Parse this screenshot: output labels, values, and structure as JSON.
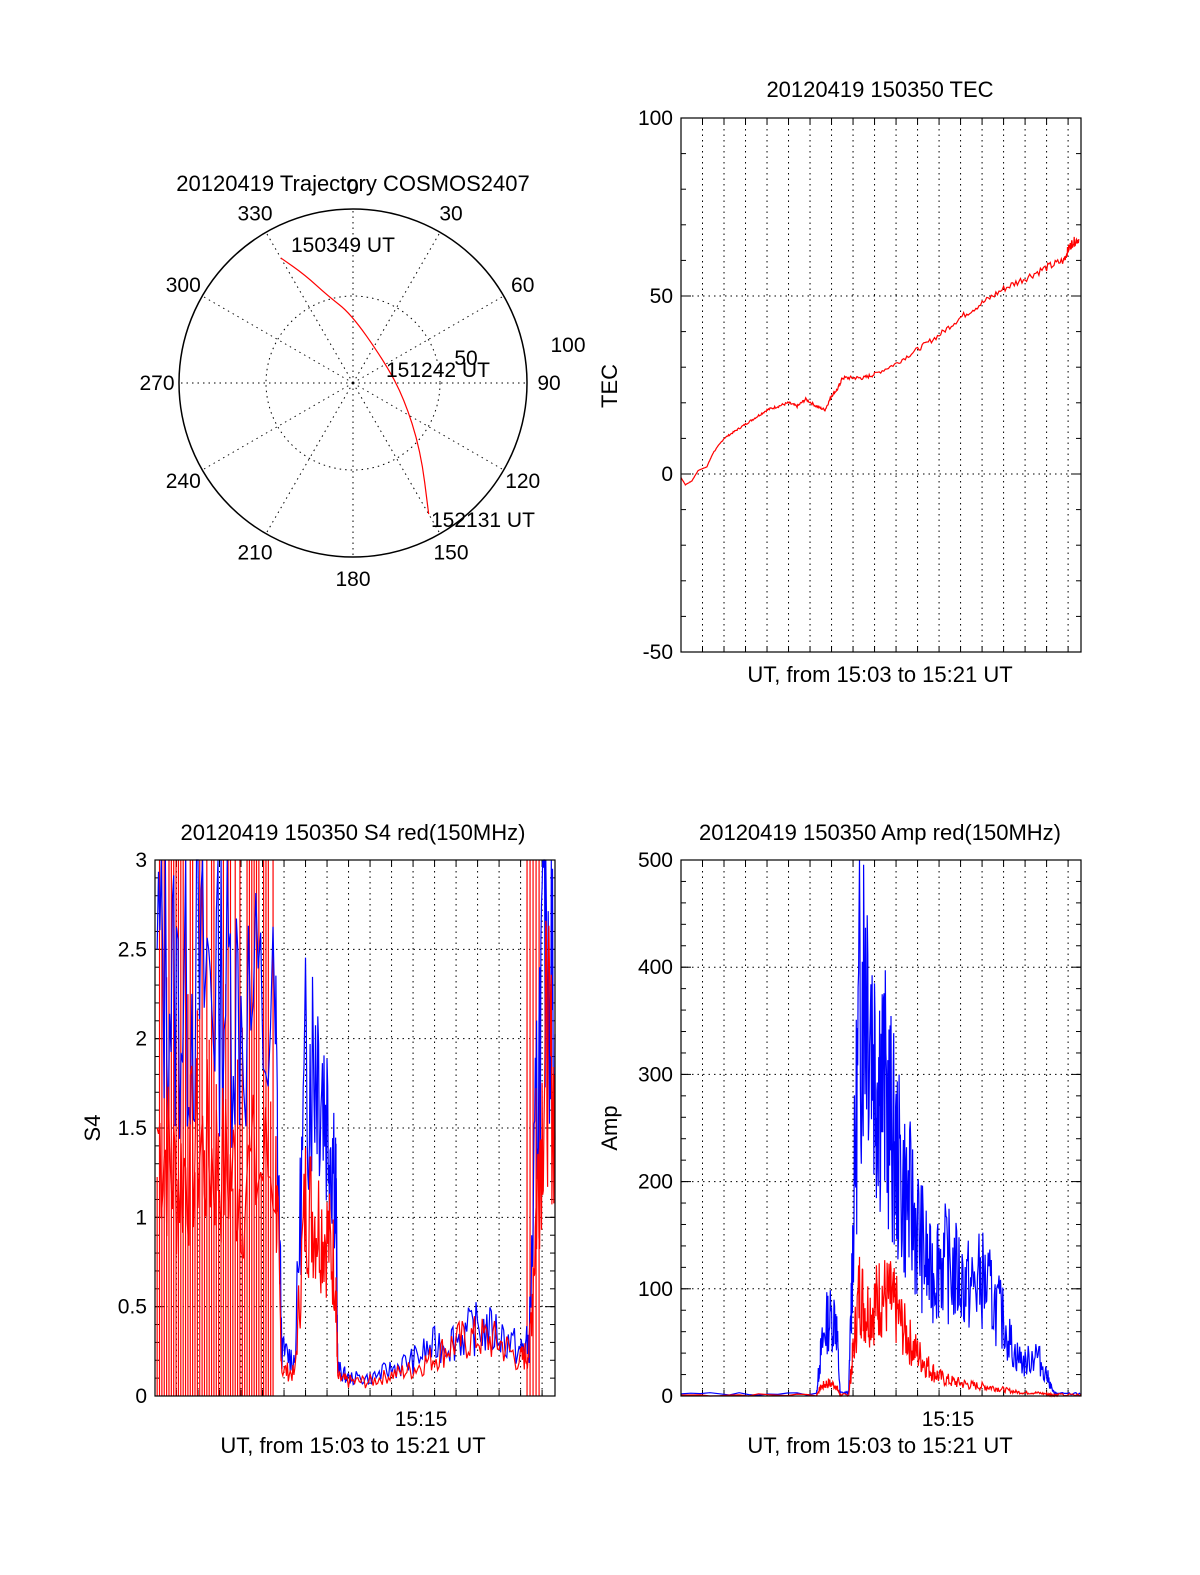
{
  "colors": {
    "red": "#ff0000",
    "blue": "#0000ff",
    "axis": "#000000",
    "background": "#ffffff"
  },
  "chart_data": [
    {
      "id": "trajectory",
      "type": "polar",
      "title": "20120419 Trajectory COSMOS2407",
      "angle_labels": [
        "0",
        "30",
        "60",
        "90",
        "120",
        "150",
        "180",
        "210",
        "240",
        "270",
        "300",
        "330"
      ],
      "radial_labels": [
        "50",
        "100"
      ],
      "radial_range": [
        0,
        100
      ],
      "annotations": [
        "150349 UT",
        "151242 UT",
        "152131 UT"
      ],
      "series": [
        {
          "color": "red",
          "points": [
            {
              "azimuth": 330,
              "elevation_zd": 83
            },
            {
              "azimuth": 336,
              "elevation_zd": 68
            },
            {
              "azimuth": 344,
              "elevation_zd": 52
            },
            {
              "azimuth": 358,
              "elevation_zd": 40
            },
            {
              "azimuth": 50,
              "elevation_zd": 22
            },
            {
              "azimuth": 105,
              "elevation_zd": 30
            },
            {
              "azimuth": 135,
              "elevation_zd": 55
            },
            {
              "azimuth": 150,
              "elevation_zd": 87
            }
          ]
        }
      ]
    },
    {
      "id": "tec",
      "type": "line",
      "title": "20120419 150350 TEC",
      "xlabel": "UT, from 15:03 to 15:21 UT",
      "ylabel": "TEC",
      "xlim_minutes": [
        3.0,
        21.6
      ],
      "ylim": [
        -50,
        100
      ],
      "yticks": [
        -50,
        0,
        50,
        100
      ],
      "grid": true,
      "series": [
        {
          "color": "red",
          "x_minutes": [
            3.0,
            3.2,
            3.5,
            3.8,
            4.2,
            4.5,
            5.0,
            5.5,
            6.0,
            6.5,
            7.0,
            7.5,
            8.0,
            8.4,
            8.8,
            9.3,
            9.7,
            10.0,
            10.3,
            10.5,
            11.0,
            11.5,
            12.0,
            13.0,
            14.0,
            15.0,
            16.0,
            17.0,
            18.0,
            19.0,
            20.0,
            20.8,
            21.0,
            21.2,
            21.5
          ],
          "y": [
            -1,
            -3,
            -2,
            1,
            2,
            6,
            10,
            12,
            14,
            16,
            18,
            19,
            20,
            19,
            21,
            19,
            18,
            22,
            24,
            27,
            27,
            27,
            28,
            31,
            35,
            39,
            44,
            48,
            52,
            55,
            58,
            60,
            63,
            65,
            66
          ]
        }
      ]
    },
    {
      "id": "s4",
      "type": "line",
      "title": "20120419 150350 S4 red(150MHz)",
      "xlabel": "UT, from 15:03 to 15:21 UT",
      "ylabel": "S4",
      "xtick_labels": [
        "15:15"
      ],
      "xlim_minutes": [
        3.0,
        21.6
      ],
      "ylim": [
        0,
        3
      ],
      "yticks": [
        0,
        0.5,
        1,
        1.5,
        2,
        2.5,
        3
      ],
      "grid": true,
      "series": [
        {
          "color": "blue",
          "x_minutes": [
            3.1,
            4.0,
            5.0,
            6.0,
            7.0,
            8.6,
            8.9,
            9.5,
            10.0,
            10.5,
            11.0,
            11.4,
            11.5,
            12.0,
            13.0,
            14.0,
            15.0,
            16.0,
            17.0,
            18.0,
            19.0,
            20.0,
            20.4,
            20.8,
            21.2,
            21.6
          ],
          "y": [
            2.5,
            2.2,
            2.3,
            2.4,
            2.2,
            2.0,
            0.25,
            0.2,
            1.8,
            2.0,
            1.6,
            1.3,
            0.15,
            0.1,
            0.1,
            0.15,
            0.2,
            0.28,
            0.32,
            0.38,
            0.35,
            0.25,
            0.3,
            1.8,
            2.8,
            2.0
          ]
        },
        {
          "color": "red",
          "x_minutes": [
            3.1,
            4.0,
            5.0,
            6.0,
            7.0,
            8.6,
            8.9,
            9.5,
            10.0,
            10.5,
            11.0,
            11.4,
            11.5,
            12.0,
            13.0,
            14.0,
            15.0,
            16.0,
            17.0,
            18.0,
            19.0,
            20.0,
            20.4,
            20.8,
            21.2,
            21.6
          ],
          "y": [
            1.5,
            1.2,
            1.4,
            1.3,
            1.2,
            1.3,
            0.15,
            0.12,
            1.1,
            1.0,
            0.9,
            0.7,
            0.1,
            0.08,
            0.08,
            0.12,
            0.15,
            0.22,
            0.3,
            0.33,
            0.3,
            0.2,
            0.25,
            1.2,
            2.0,
            1.6
          ]
        }
      ]
    },
    {
      "id": "amp",
      "type": "line",
      "title": "20120419 150350 Amp red(150MHz)",
      "xlabel": "UT, from 15:03 to 15:21 UT",
      "ylabel": "Amp",
      "xtick_labels": [
        "15:15"
      ],
      "xlim_minutes": [
        3.0,
        21.6
      ],
      "ylim": [
        0,
        500
      ],
      "yticks": [
        0,
        100,
        200,
        300,
        400,
        500
      ],
      "grid": true,
      "series": [
        {
          "color": "blue",
          "x_minutes": [
            3.0,
            9.3,
            9.5,
            9.8,
            10.2,
            10.4,
            10.8,
            11.0,
            11.3,
            11.6,
            12.0,
            12.3,
            12.7,
            13.0,
            13.4,
            13.8,
            14.2,
            14.6,
            15.0,
            15.5,
            16.0,
            16.5,
            17.0,
            17.5,
            18.0,
            18.5,
            19.0,
            19.5,
            20.0,
            20.3,
            20.5,
            21.6
          ],
          "y": [
            2,
            2,
            40,
            70,
            75,
            3,
            3,
            150,
            360,
            420,
            320,
            300,
            260,
            220,
            190,
            170,
            140,
            110,
            130,
            120,
            110,
            100,
            110,
            90,
            70,
            40,
            30,
            40,
            20,
            4,
            2,
            2
          ]
        },
        {
          "color": "red",
          "x_minutes": [
            3.0,
            9.3,
            9.5,
            9.8,
            10.2,
            10.4,
            10.8,
            11.0,
            11.3,
            11.6,
            12.0,
            12.3,
            12.7,
            13.0,
            13.4,
            13.8,
            14.2,
            14.6,
            15.0,
            15.5,
            16.0,
            16.5,
            17.0,
            17.5,
            18.0,
            18.5,
            19.0,
            19.5,
            20.0,
            20.3,
            20.5,
            21.6
          ],
          "y": [
            1,
            1,
            8,
            12,
            10,
            1,
            1,
            40,
            100,
            80,
            85,
            95,
            90,
            80,
            60,
            45,
            35,
            25,
            18,
            14,
            12,
            10,
            9,
            8,
            6,
            4,
            3,
            3,
            2,
            1,
            1,
            1
          ]
        }
      ]
    }
  ]
}
